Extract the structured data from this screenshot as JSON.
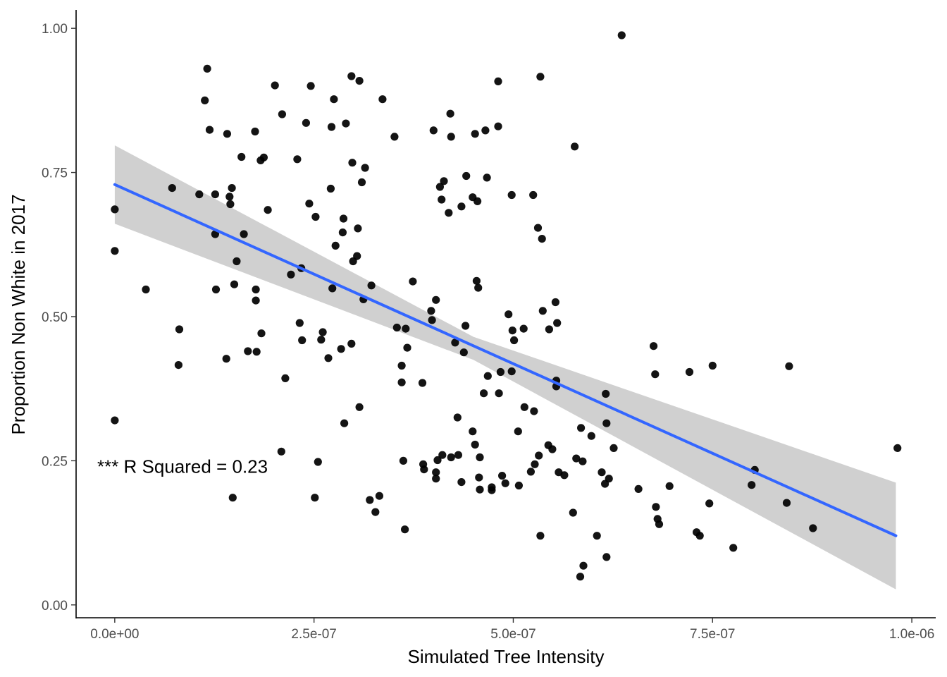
{
  "chart_data": {
    "type": "scatter",
    "xlabel": "Simulated Tree Intensity",
    "ylabel": "Proportion Non White in 2017",
    "xlim": [
      -4.85e-08,
      1.03e-06
    ],
    "ylim": [
      -0.0223,
      1.032
    ],
    "x_ticks": [
      {
        "value": 0,
        "label": "0.0e+00"
      },
      {
        "value": 2.5e-07,
        "label": "2.5e-07"
      },
      {
        "value": 5e-07,
        "label": "5.0e-07"
      },
      {
        "value": 7.5e-07,
        "label": "7.5e-07"
      },
      {
        "value": 1e-06,
        "label": "1.0e-06"
      }
    ],
    "y_ticks": [
      {
        "value": 0,
        "label": "0.00"
      },
      {
        "value": 0.25,
        "label": "0.25"
      },
      {
        "value": 0.5,
        "label": "0.50"
      },
      {
        "value": 0.75,
        "label": "0.75"
      },
      {
        "value": 1,
        "label": "1.00"
      }
    ],
    "grid": false,
    "annotation": {
      "text": "*** R Squared = 0.23",
      "x": -2.2e-08,
      "y": 0.24
    },
    "point_color": "#000000",
    "fit_color": "#3366ff",
    "band_color": "#bebebe",
    "fit_line": {
      "x": [
        0,
        9.8e-07
      ],
      "y": [
        0.729,
        0.12
      ]
    },
    "confidence_band": {
      "x": [
        0,
        4.5e-07,
        9.8e-07
      ],
      "lower": [
        0.661,
        0.425,
        0.027
      ],
      "upper": [
        0.797,
        0.465,
        0.212
      ]
    },
    "points": [
      [
        0,
        0.686
      ],
      [
        0,
        0.614
      ],
      [
        0,
        0.32
      ],
      [
        3.9e-08,
        0.547
      ],
      [
        7.2e-08,
        0.723
      ],
      [
        8.1e-08,
        0.478
      ],
      [
        8e-08,
        0.416
      ],
      [
        1.06e-07,
        0.712
      ],
      [
        1.13e-07,
        0.875
      ],
      [
        1.16e-07,
        0.93
      ],
      [
        1.19e-07,
        0.824
      ],
      [
        1.26e-07,
        0.712
      ],
      [
        1.26e-07,
        0.643
      ],
      [
        1.27e-07,
        0.547
      ],
      [
        1.4e-07,
        0.427
      ],
      [
        1.41e-07,
        0.817
      ],
      [
        1.44e-07,
        0.708
      ],
      [
        1.45e-07,
        0.695
      ],
      [
        1.47e-07,
        0.723
      ],
      [
        1.48e-07,
        0.186
      ],
      [
        1.5e-07,
        0.556
      ],
      [
        1.53e-07,
        0.596
      ],
      [
        1.59e-07,
        0.777
      ],
      [
        1.62e-07,
        0.643
      ],
      [
        1.67e-07,
        0.44
      ],
      [
        1.76e-07,
        0.821
      ],
      [
        1.77e-07,
        0.547
      ],
      [
        1.77e-07,
        0.528
      ],
      [
        1.78e-07,
        0.439
      ],
      [
        1.83e-07,
        0.771
      ],
      [
        1.84e-07,
        0.471
      ],
      [
        1.87e-07,
        0.776
      ],
      [
        1.92e-07,
        0.685
      ],
      [
        2.01e-07,
        0.901
      ],
      [
        2.09e-07,
        0.266
      ],
      [
        2.1e-07,
        0.851
      ],
      [
        2.14e-07,
        0.393
      ],
      [
        2.21e-07,
        0.573
      ],
      [
        2.29e-07,
        0.773
      ],
      [
        2.32e-07,
        0.489
      ],
      [
        2.34e-07,
        0.584
      ],
      [
        2.35e-07,
        0.459
      ],
      [
        2.4e-07,
        0.836
      ],
      [
        2.44e-07,
        0.696
      ],
      [
        2.46e-07,
        0.9
      ],
      [
        2.51e-07,
        0.186
      ],
      [
        2.52e-07,
        0.673
      ],
      [
        2.55e-07,
        0.248
      ],
      [
        2.59e-07,
        0.46
      ],
      [
        2.61e-07,
        0.473
      ],
      [
        2.68e-07,
        0.428
      ],
      [
        2.71e-07,
        0.722
      ],
      [
        2.72e-07,
        0.829
      ],
      [
        2.73e-07,
        0.549
      ],
      [
        2.75e-07,
        0.877
      ],
      [
        2.77e-07,
        0.623
      ],
      [
        2.84e-07,
        0.444
      ],
      [
        2.86e-07,
        0.646
      ],
      [
        2.87e-07,
        0.67
      ],
      [
        2.88e-07,
        0.315
      ],
      [
        2.9e-07,
        0.835
      ],
      [
        2.97e-07,
        0.917
      ],
      [
        2.97e-07,
        0.453
      ],
      [
        2.98e-07,
        0.767
      ],
      [
        2.99e-07,
        0.596
      ],
      [
        3.04e-07,
        0.605
      ],
      [
        3.05e-07,
        0.653
      ],
      [
        3.07e-07,
        0.909
      ],
      [
        3.07e-07,
        0.343
      ],
      [
        3.1e-07,
        0.733
      ],
      [
        3.12e-07,
        0.53
      ],
      [
        3.14e-07,
        0.758
      ],
      [
        3.2e-07,
        0.182
      ],
      [
        3.22e-07,
        0.554
      ],
      [
        3.27e-07,
        0.161
      ],
      [
        3.32e-07,
        0.189
      ],
      [
        3.36e-07,
        0.877
      ],
      [
        3.51e-07,
        0.812
      ],
      [
        3.54e-07,
        0.481
      ],
      [
        3.6e-07,
        0.415
      ],
      [
        3.6e-07,
        0.386
      ],
      [
        3.62e-07,
        0.25
      ],
      [
        3.64e-07,
        0.131
      ],
      [
        3.65e-07,
        0.479
      ],
      [
        3.67e-07,
        0.446
      ],
      [
        3.74e-07,
        0.561
      ],
      [
        3.86e-07,
        0.385
      ],
      [
        3.87e-07,
        0.244
      ],
      [
        3.88e-07,
        0.235
      ],
      [
        3.97e-07,
        0.51
      ],
      [
        3.98e-07,
        0.494
      ],
      [
        4e-07,
        0.823
      ],
      [
        4.03e-07,
        0.529
      ],
      [
        4.03e-07,
        0.219
      ],
      [
        4.03e-07,
        0.23
      ],
      [
        4.05e-07,
        0.251
      ],
      [
        4.08e-07,
        0.725
      ],
      [
        4.1e-07,
        0.703
      ],
      [
        4.11e-07,
        0.26
      ],
      [
        4.13e-07,
        0.735
      ],
      [
        4.19e-07,
        0.68
      ],
      [
        4.21e-07,
        0.852
      ],
      [
        4.22e-07,
        0.812
      ],
      [
        4.22e-07,
        0.256
      ],
      [
        4.27e-07,
        0.455
      ],
      [
        4.3e-07,
        0.325
      ],
      [
        4.31e-07,
        0.26
      ],
      [
        4.35e-07,
        0.691
      ],
      [
        4.35e-07,
        0.213
      ],
      [
        4.38e-07,
        0.438
      ],
      [
        4.4e-07,
        0.484
      ],
      [
        4.41e-07,
        0.744
      ],
      [
        4.49e-07,
        0.707
      ],
      [
        4.49e-07,
        0.301
      ],
      [
        4.52e-07,
        0.278
      ],
      [
        4.52e-07,
        0.817
      ],
      [
        4.54e-07,
        0.562
      ],
      [
        4.55e-07,
        0.7
      ],
      [
        4.56e-07,
        0.55
      ],
      [
        4.57e-07,
        0.221
      ],
      [
        4.58e-07,
        0.2
      ],
      [
        4.58e-07,
        0.256
      ],
      [
        4.63e-07,
        0.367
      ],
      [
        4.65e-07,
        0.823
      ],
      [
        4.67e-07,
        0.741
      ],
      [
        4.68e-07,
        0.397
      ],
      [
        4.73e-07,
        0.199
      ],
      [
        4.73e-07,
        0.204
      ],
      [
        4.81e-07,
        0.908
      ],
      [
        4.81e-07,
        0.83
      ],
      [
        4.82e-07,
        0.367
      ],
      [
        4.84e-07,
        0.404
      ],
      [
        4.86e-07,
        0.224
      ],
      [
        4.9e-07,
        0.211
      ],
      [
        4.94e-07,
        0.504
      ],
      [
        4.98e-07,
        0.405
      ],
      [
        4.98e-07,
        0.711
      ],
      [
        4.99e-07,
        0.476
      ],
      [
        5.01e-07,
        0.459
      ],
      [
        5.06e-07,
        0.301
      ],
      [
        5.07e-07,
        0.207
      ],
      [
        5.13e-07,
        0.479
      ],
      [
        5.14e-07,
        0.343
      ],
      [
        5.22e-07,
        0.231
      ],
      [
        5.25e-07,
        0.711
      ],
      [
        5.26e-07,
        0.336
      ],
      [
        5.27e-07,
        0.244
      ],
      [
        5.31e-07,
        0.654
      ],
      [
        5.32e-07,
        0.259
      ],
      [
        5.34e-07,
        0.916
      ],
      [
        5.34e-07,
        0.12
      ],
      [
        5.36e-07,
        0.635
      ],
      [
        5.37e-07,
        0.51
      ],
      [
        5.44e-07,
        0.277
      ],
      [
        5.45e-07,
        0.478
      ],
      [
        5.49e-07,
        0.27
      ],
      [
        5.53e-07,
        0.525
      ],
      [
        5.54e-07,
        0.389
      ],
      [
        5.54e-07,
        0.379
      ],
      [
        5.55e-07,
        0.489
      ],
      [
        5.57e-07,
        0.23
      ],
      [
        5.64e-07,
        0.225
      ],
      [
        5.75e-07,
        0.16
      ],
      [
        5.77e-07,
        0.795
      ],
      [
        5.79e-07,
        0.254
      ],
      [
        5.84e-07,
        0.049
      ],
      [
        5.85e-07,
        0.307
      ],
      [
        5.87e-07,
        0.249
      ],
      [
        5.88e-07,
        0.068
      ],
      [
        5.98e-07,
        0.293
      ],
      [
        6.05e-07,
        0.12
      ],
      [
        6.11e-07,
        0.23
      ],
      [
        6.15e-07,
        0.21
      ],
      [
        6.16e-07,
        0.366
      ],
      [
        6.17e-07,
        0.315
      ],
      [
        6.17e-07,
        0.083
      ],
      [
        6.2e-07,
        0.219
      ],
      [
        6.26e-07,
        0.272
      ],
      [
        6.36e-07,
        0.988
      ],
      [
        6.57e-07,
        0.201
      ],
      [
        6.76e-07,
        0.449
      ],
      [
        6.78e-07,
        0.4
      ],
      [
        6.79e-07,
        0.17
      ],
      [
        6.81e-07,
        0.149
      ],
      [
        6.83e-07,
        0.14
      ],
      [
        6.96e-07,
        0.206
      ],
      [
        7.21e-07,
        0.404
      ],
      [
        7.3e-07,
        0.126
      ],
      [
        7.34e-07,
        0.12
      ],
      [
        7.46e-07,
        0.176
      ],
      [
        7.5e-07,
        0.415
      ],
      [
        7.76e-07,
        0.099
      ],
      [
        7.99e-07,
        0.208
      ],
      [
        8.03e-07,
        0.234
      ],
      [
        8.43e-07,
        0.177
      ],
      [
        8.46e-07,
        0.414
      ],
      [
        8.76e-07,
        0.133
      ],
      [
        9.82e-07,
        0.272
      ]
    ]
  }
}
